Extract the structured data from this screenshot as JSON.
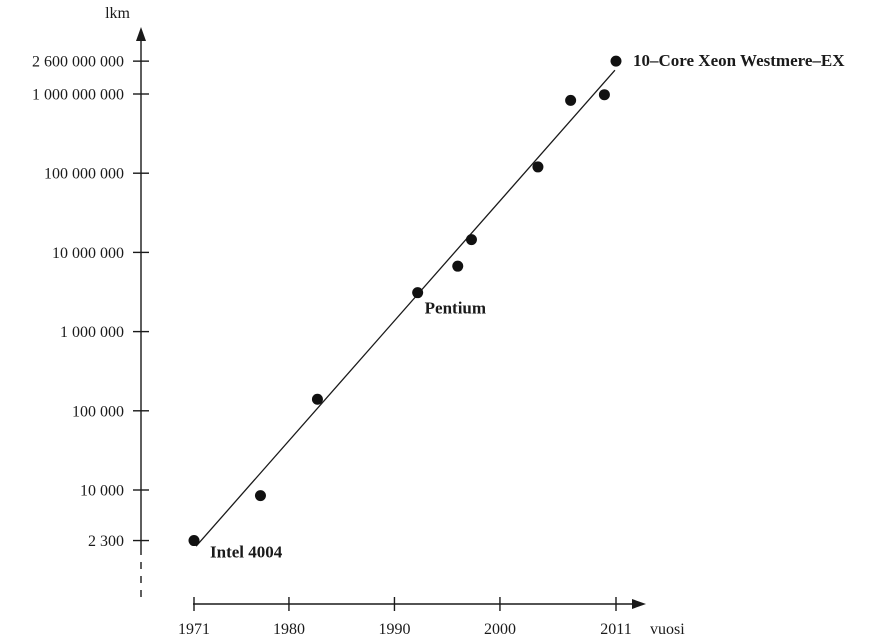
{
  "chart_data": {
    "type": "scatter",
    "title": "",
    "ylabel": "lkm",
    "xlabel": "vuosi",
    "yscale": "log",
    "xlim": [
      1971,
      2011
    ],
    "ylim": [
      2300,
      2600000000
    ],
    "x_ticks": [
      {
        "value": 1971,
        "label": "1971"
      },
      {
        "value": 1980,
        "label": "1980"
      },
      {
        "value": 1990,
        "label": "1990"
      },
      {
        "value": 2000,
        "label": "2000"
      },
      {
        "value": 2011,
        "label": "2011"
      }
    ],
    "y_ticks": [
      {
        "value": 2300,
        "label": "2 300"
      },
      {
        "value": 10000,
        "label": "10 000"
      },
      {
        "value": 100000,
        "label": "100 000"
      },
      {
        "value": 1000000,
        "label": "1 000 000"
      },
      {
        "value": 10000000,
        "label": "10 000 000"
      },
      {
        "value": 100000000,
        "label": "100 000 000"
      },
      {
        "value": 1000000000,
        "label": "1 000 000 000"
      },
      {
        "value": 2600000000,
        "label": "2 600 000 000"
      }
    ],
    "points": [
      {
        "x": 1971.0,
        "y": 2300
      },
      {
        "x": 1977.3,
        "y": 8500
      },
      {
        "x": 1982.7,
        "y": 140000
      },
      {
        "x": 1992.2,
        "y": 3100000
      },
      {
        "x": 1996.0,
        "y": 6700000
      },
      {
        "x": 1997.3,
        "y": 14500000
      },
      {
        "x": 2003.6,
        "y": 120000000
      },
      {
        "x": 2006.7,
        "y": 830000000
      },
      {
        "x": 2009.9,
        "y": 980000000
      },
      {
        "x": 2011.0,
        "y": 2600000000
      }
    ],
    "trendline": [
      {
        "x": 1971.2,
        "y": 1950
      },
      {
        "x": 2010.9,
        "y": 2000000000
      }
    ],
    "annotations": [
      {
        "text": "Intel 4004",
        "x": 1971.0,
        "y": 2300
      },
      {
        "text": "Pentium",
        "x": 1992.2,
        "y": 3100000
      },
      {
        "text": "10–Core Xeon Westmere–EX",
        "x": 2011.0,
        "y": 2600000000
      }
    ],
    "grid": false,
    "legend": "none"
  }
}
